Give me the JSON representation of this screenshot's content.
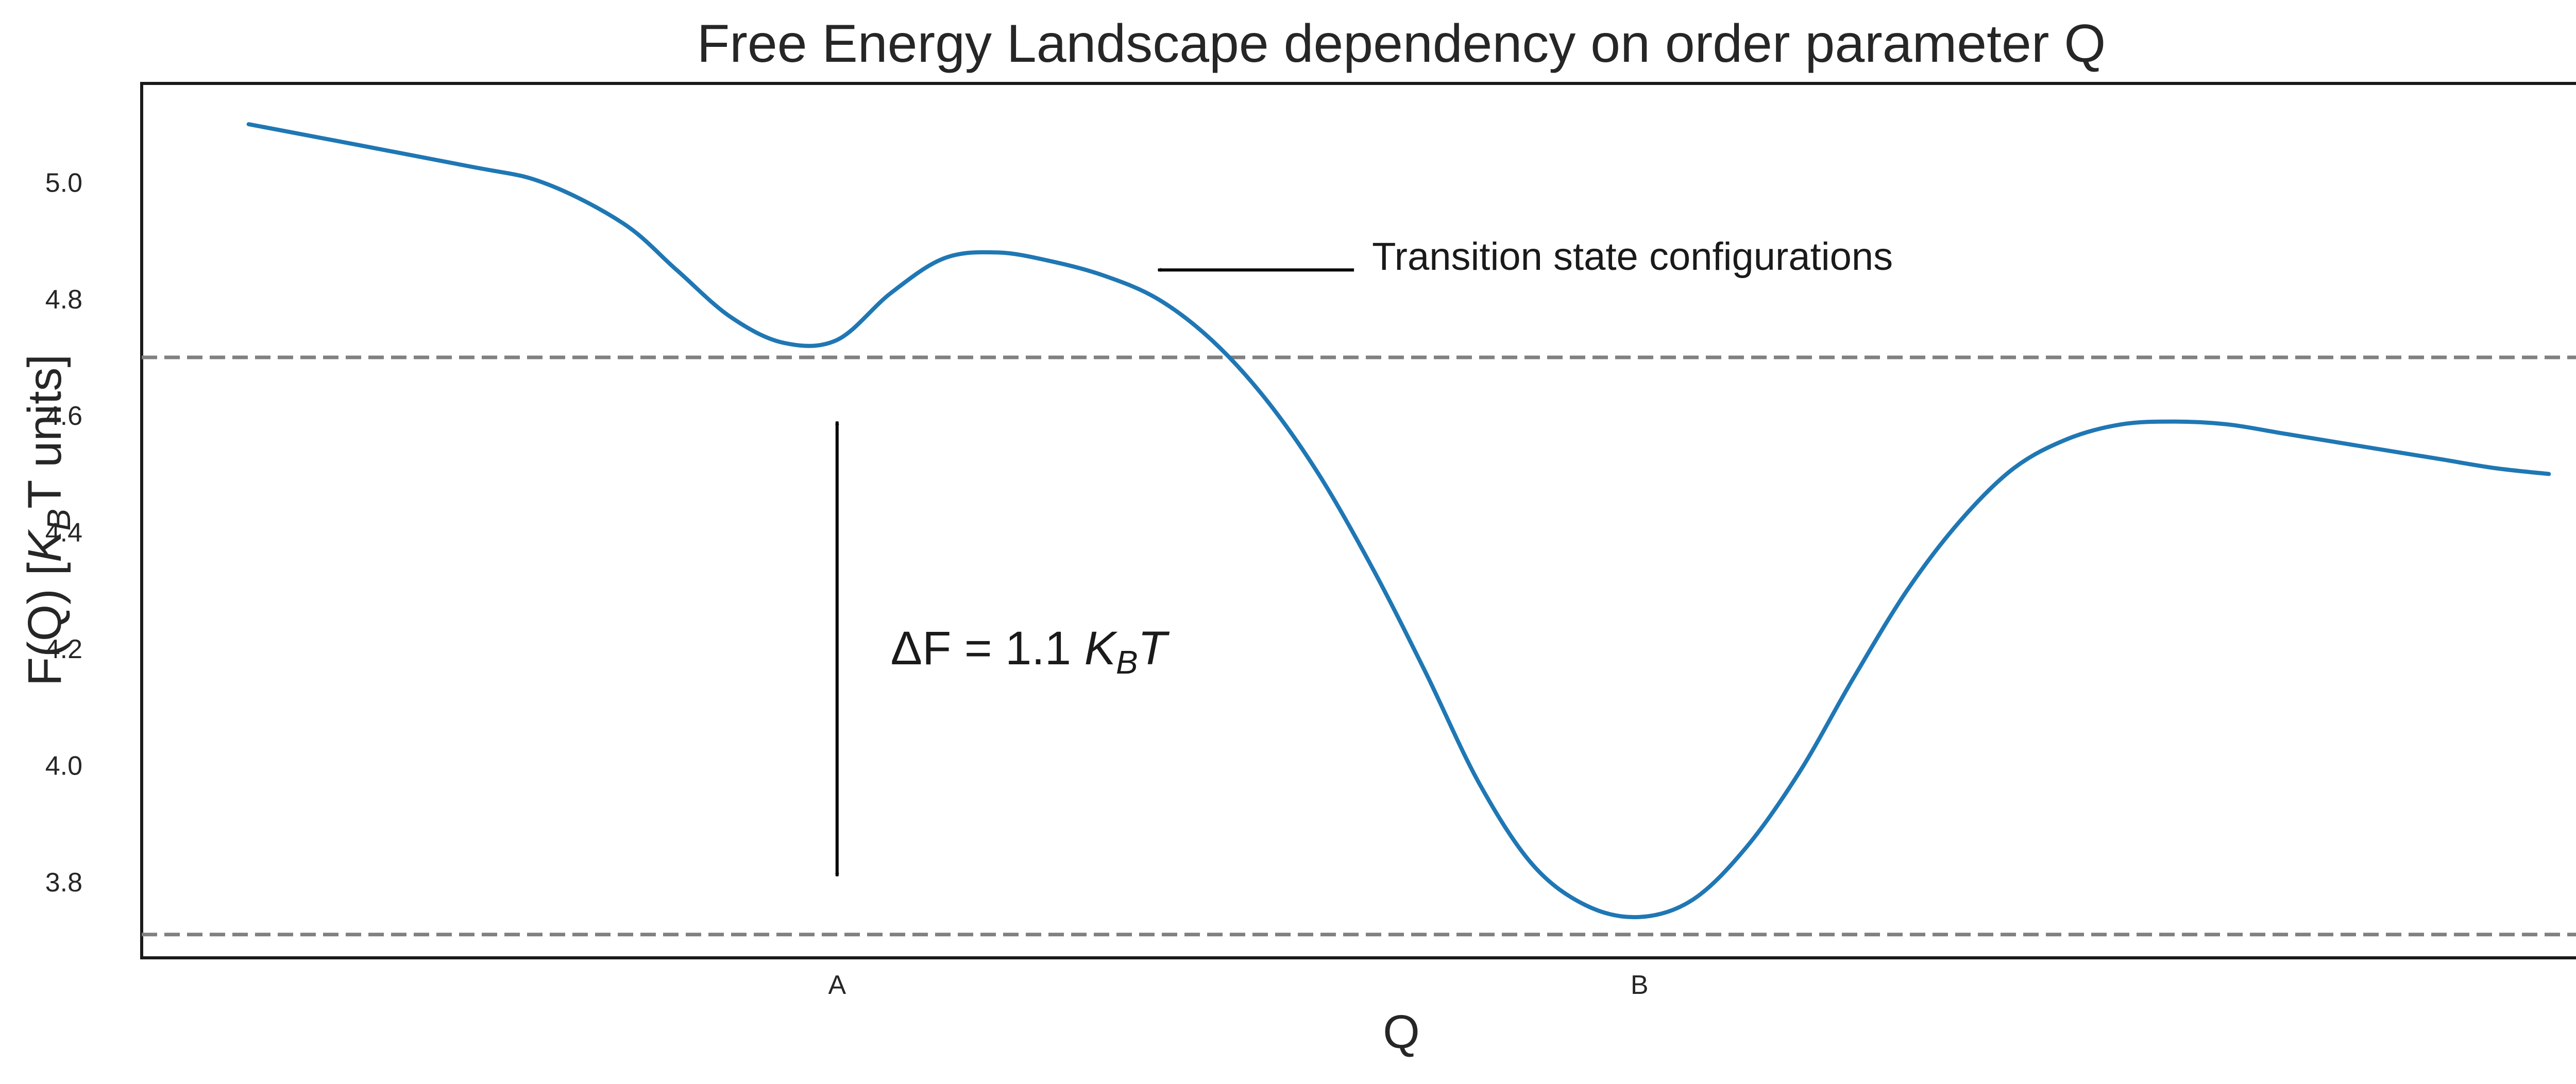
{
  "chart_data": {
    "type": "line",
    "title": "Free Energy Landscape dependency on order parameter Q",
    "xlabel": "Q",
    "ylabel": {
      "prefix": "F(Q) [",
      "k": "K",
      "sub": "B",
      "suffix": "T units]"
    },
    "xlim": [
      -2.3,
      2.4
    ],
    "ylim": [
      3.67,
      5.17
    ],
    "grid": false,
    "x_ticks": [
      {
        "value": -1.0,
        "label": "A"
      },
      {
        "value": 0.5,
        "label": "B"
      }
    ],
    "y_ticks": [
      3.8,
      4.0,
      4.2,
      4.4,
      4.6,
      4.8,
      5.0
    ],
    "series": [
      {
        "color": "#1f77b4",
        "x": [
          -2.1,
          -1.7,
          -1.55,
          -1.4,
          -1.3,
          -1.2,
          -1.1,
          -1.0,
          -0.9,
          -0.8,
          -0.7,
          -0.6,
          -0.5,
          -0.4,
          -0.3,
          -0.2,
          -0.1,
          0.0,
          0.1,
          0.2,
          0.3,
          0.4,
          0.5,
          0.6,
          0.7,
          0.8,
          0.9,
          1.0,
          1.1,
          1.2,
          1.3,
          1.4,
          1.5,
          1.6,
          1.7,
          1.8,
          1.9,
          2.0,
          2.1,
          2.2
        ],
        "values": [
          5.1,
          5.03,
          5.0,
          4.93,
          4.85,
          4.77,
          4.725,
          4.73,
          4.81,
          4.87,
          4.88,
          4.865,
          4.84,
          4.8,
          4.73,
          4.63,
          4.5,
          4.34,
          4.16,
          3.97,
          3.83,
          3.76,
          3.74,
          3.77,
          3.86,
          3.99,
          4.15,
          4.3,
          4.42,
          4.51,
          4.56,
          4.585,
          4.59,
          4.585,
          4.57,
          4.555,
          4.54,
          4.525,
          4.51,
          4.5
        ]
      }
    ],
    "hlines": [
      {
        "y": 4.7,
        "color": "#808080",
        "style": "dashed"
      },
      {
        "y": 3.71,
        "color": "#808080",
        "style": "dashed"
      }
    ],
    "annotations": {
      "transition": {
        "text": "Transition state configurations",
        "arrow_tip": {
          "x": -0.4,
          "y": 4.85
        },
        "text_pos": {
          "x": 0.0,
          "y": 4.85
        }
      },
      "delta": {
        "prefix": "ΔF = 1.1 ",
        "k": "K",
        "sub": "B",
        "suffix": "T",
        "arrow_x": -1.0,
        "arrow_y": [
          3.81,
          4.59
        ],
        "text_pos": {
          "x": -0.9,
          "y": 4.2
        }
      }
    }
  }
}
